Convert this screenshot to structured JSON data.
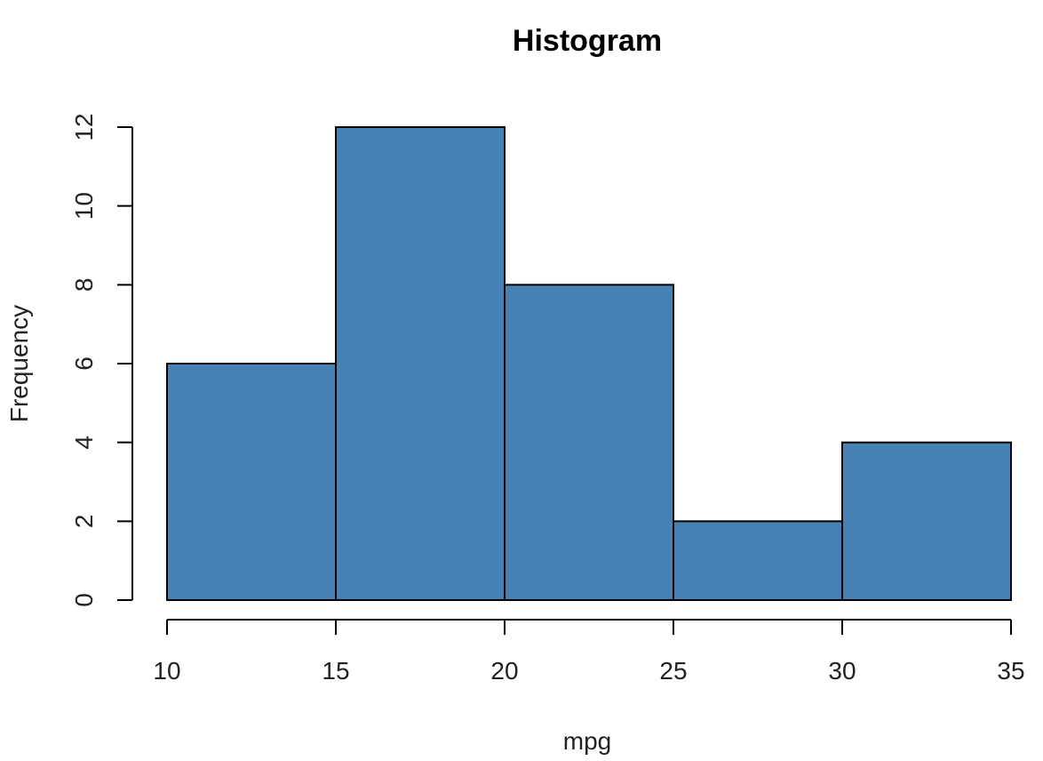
{
  "chart_data": {
    "type": "bar",
    "histogram": true,
    "title": "Histogram",
    "xlabel": "mpg",
    "ylabel": "Frequency",
    "bins": [
      {
        "from": 10,
        "to": 15,
        "count": 6
      },
      {
        "from": 15,
        "to": 20,
        "count": 12
      },
      {
        "from": 20,
        "to": 25,
        "count": 8
      },
      {
        "from": 25,
        "to": 30,
        "count": 2
      },
      {
        "from": 30,
        "to": 35,
        "count": 4
      }
    ],
    "xlim": [
      10,
      35
    ],
    "ylim": [
      0,
      12
    ],
    "x_ticks": [
      "10",
      "15",
      "20",
      "25",
      "30",
      "35"
    ],
    "y_ticks": [
      "0",
      "2",
      "4",
      "6",
      "8",
      "10",
      "12"
    ],
    "grid": false,
    "legend": "none",
    "bar_color": "#4682B4"
  }
}
